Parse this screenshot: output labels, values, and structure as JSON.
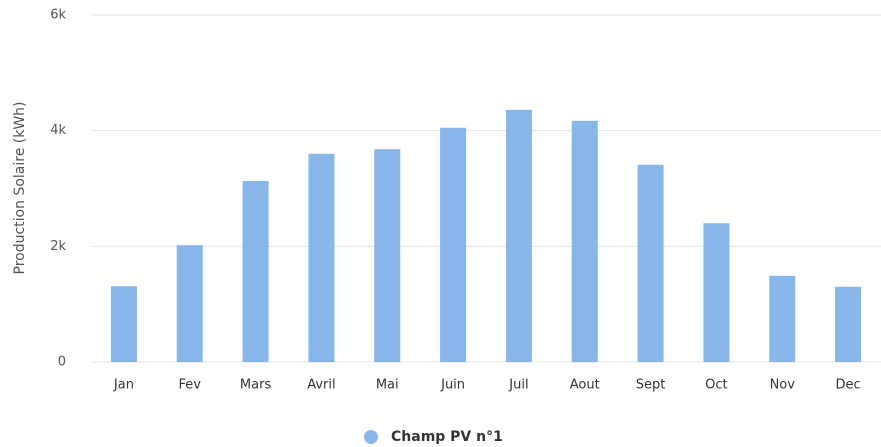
{
  "chart_data": {
    "type": "bar",
    "y_label": "Production Solaire (kWh)",
    "categories": [
      "Jan",
      "Fev",
      "Mars",
      "Avril",
      "Mai",
      "Juin",
      "Juil",
      "Aout",
      "Sept",
      "Oct",
      "Nov",
      "Dec"
    ],
    "series": [
      {
        "name": "Champ PV n°1",
        "color": "#86b7e8",
        "values": [
          1310,
          2020,
          3130,
          3600,
          3680,
          4050,
          4360,
          4170,
          3410,
          2400,
          1490,
          1300
        ]
      }
    ],
    "ylim": [
      0,
      6000
    ],
    "yticks": [
      0,
      {
        "value": 2000,
        "label": "2k"
      },
      {
        "value": 4000,
        "label": "4k"
      },
      {
        "value": 6000,
        "label": "6k"
      }
    ],
    "grid": true,
    "legend": "bottom"
  }
}
